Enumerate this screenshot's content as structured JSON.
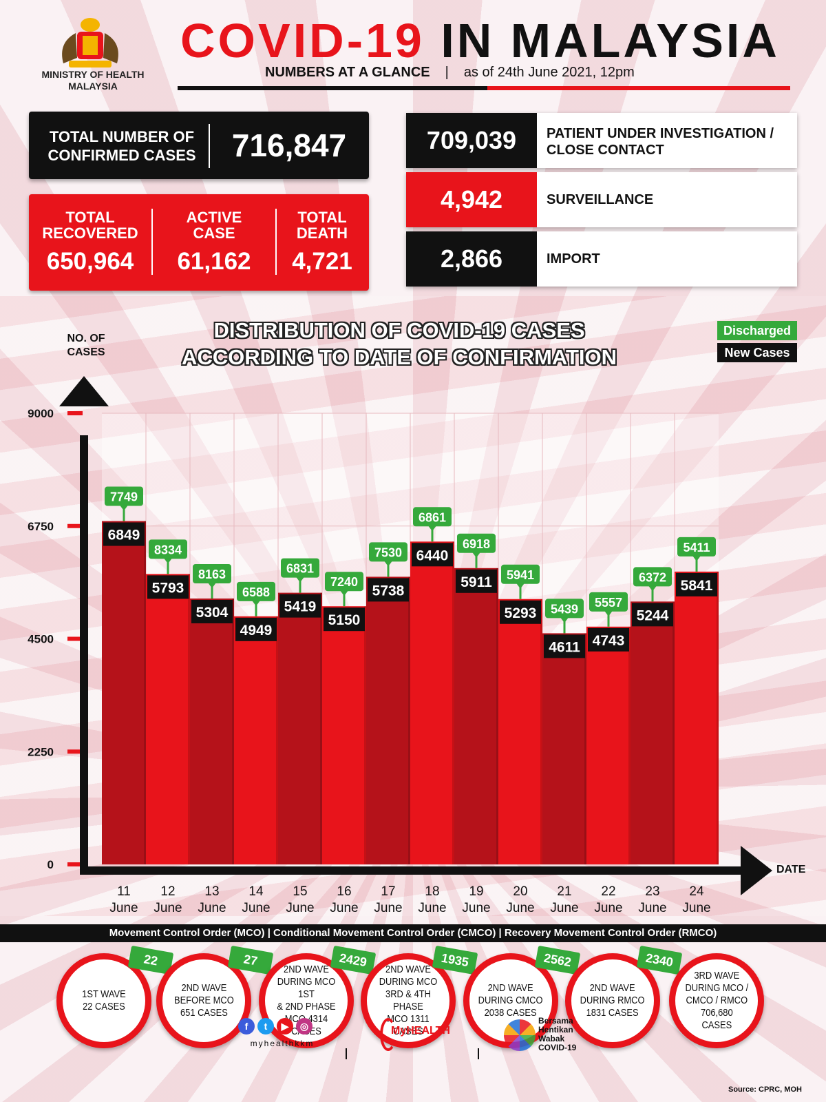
{
  "header": {
    "ministry": "MINISTRY OF HEALTH\nMALAYSIA",
    "title_red": "COVID-19",
    "title_black": "IN MALAYSIA",
    "subtitle_bold": "NUMBERS AT A GLANCE",
    "subtitle_sep": "|",
    "subtitle_date": "as of 24th June 2021, 12pm"
  },
  "stats": {
    "total_label": "TOTAL NUMBER OF\nCONFIRMED CASES",
    "total_value": "716,847",
    "recovered_label": "TOTAL\nRECOVERED",
    "recovered_value": "650,964",
    "active_label": "ACTIVE\nCASE",
    "active_value": "61,162",
    "death_label": "TOTAL\nDEATH",
    "death_value": "4,721"
  },
  "screening": [
    {
      "value": "709,039",
      "label": "PATIENT UNDER INVESTIGATION /\nCLOSE CONTACT",
      "color": "#111111"
    },
    {
      "value": "4,942",
      "label": "SURVEILLANCE",
      "color": "#e8141b"
    },
    {
      "value": "2,866",
      "label": "IMPORT",
      "color": "#111111"
    }
  ],
  "colors": {
    "bar": "#e8141b",
    "bar_dark": "#b5121a",
    "discharged": "#35a93b",
    "new_cases": "#111111"
  },
  "chart_data": {
    "type": "bar",
    "title": "DISTRIBUTION OF COVID-19 CASES\nACCORDING TO DATE OF CONFIRMATION",
    "ylabel": "NO. OF\nCASES",
    "xlabel": "DATE",
    "ylim": [
      0,
      9000
    ],
    "yticks": [
      "9000",
      "6750",
      "4500",
      "2250",
      "0"
    ],
    "legend": [
      "Discharged",
      "New Cases"
    ],
    "legend_position": "top-right",
    "categories": [
      "11\nJune",
      "12\nJune",
      "13\nJune",
      "14\nJune",
      "15\nJune",
      "16\nJune",
      "17\nJune",
      "18\nJune",
      "19\nJune",
      "20\nJune",
      "21\nJune",
      "22\nJune",
      "23\nJune",
      "24\nJune"
    ],
    "series": [
      {
        "name": "New Cases",
        "values": [
          6849,
          5793,
          5304,
          4949,
          5419,
          5150,
          5738,
          6440,
          5911,
          5293,
          4611,
          4743,
          5244,
          5841
        ]
      },
      {
        "name": "Discharged",
        "values": [
          7749,
          8334,
          8163,
          6588,
          6831,
          7240,
          7530,
          6861,
          6918,
          5941,
          5439,
          5557,
          6372,
          5411
        ]
      }
    ]
  },
  "mco": {
    "bar": "Movement Control Order (MCO) | Conditional Movement Control Order (CMCO) | Recovery Movement Control Order (RMCO)",
    "waves": [
      {
        "text": "1ST WAVE\n22 CASES",
        "badge": "22"
      },
      {
        "text": "2ND WAVE\nBEFORE MCO\n651 CASES",
        "badge": "27"
      },
      {
        "text": "2ND WAVE\nDURING MCO 1ST\n& 2ND PHASE\nMCO 4314\nCASES",
        "badge": "2429"
      },
      {
        "text": "2ND WAVE\nDURING MCO\n3RD & 4TH PHASE\nMCO 1311\nCASES",
        "badge": "1935"
      },
      {
        "text": "2ND WAVE\nDURING CMCO\n2038 CASES",
        "badge": "2562"
      },
      {
        "text": "2ND WAVE\nDURING RMCO\n1831 CASES",
        "badge": "2340"
      },
      {
        "text": "3RD WAVE\nDURING MCO /\nCMCO / RMCO\n706,680\nCASES",
        "badge": ""
      }
    ]
  },
  "footer": {
    "handle": "myhealthkkm",
    "myhealth": "MyHEALTH",
    "bersama": "Bersama\nHentikan\nWabak\nCOVID-19",
    "source": "Source: CPRC, MOH",
    "icons": [
      "facebook-icon",
      "twitter-icon",
      "youtube-icon",
      "instagram-icon"
    ]
  }
}
